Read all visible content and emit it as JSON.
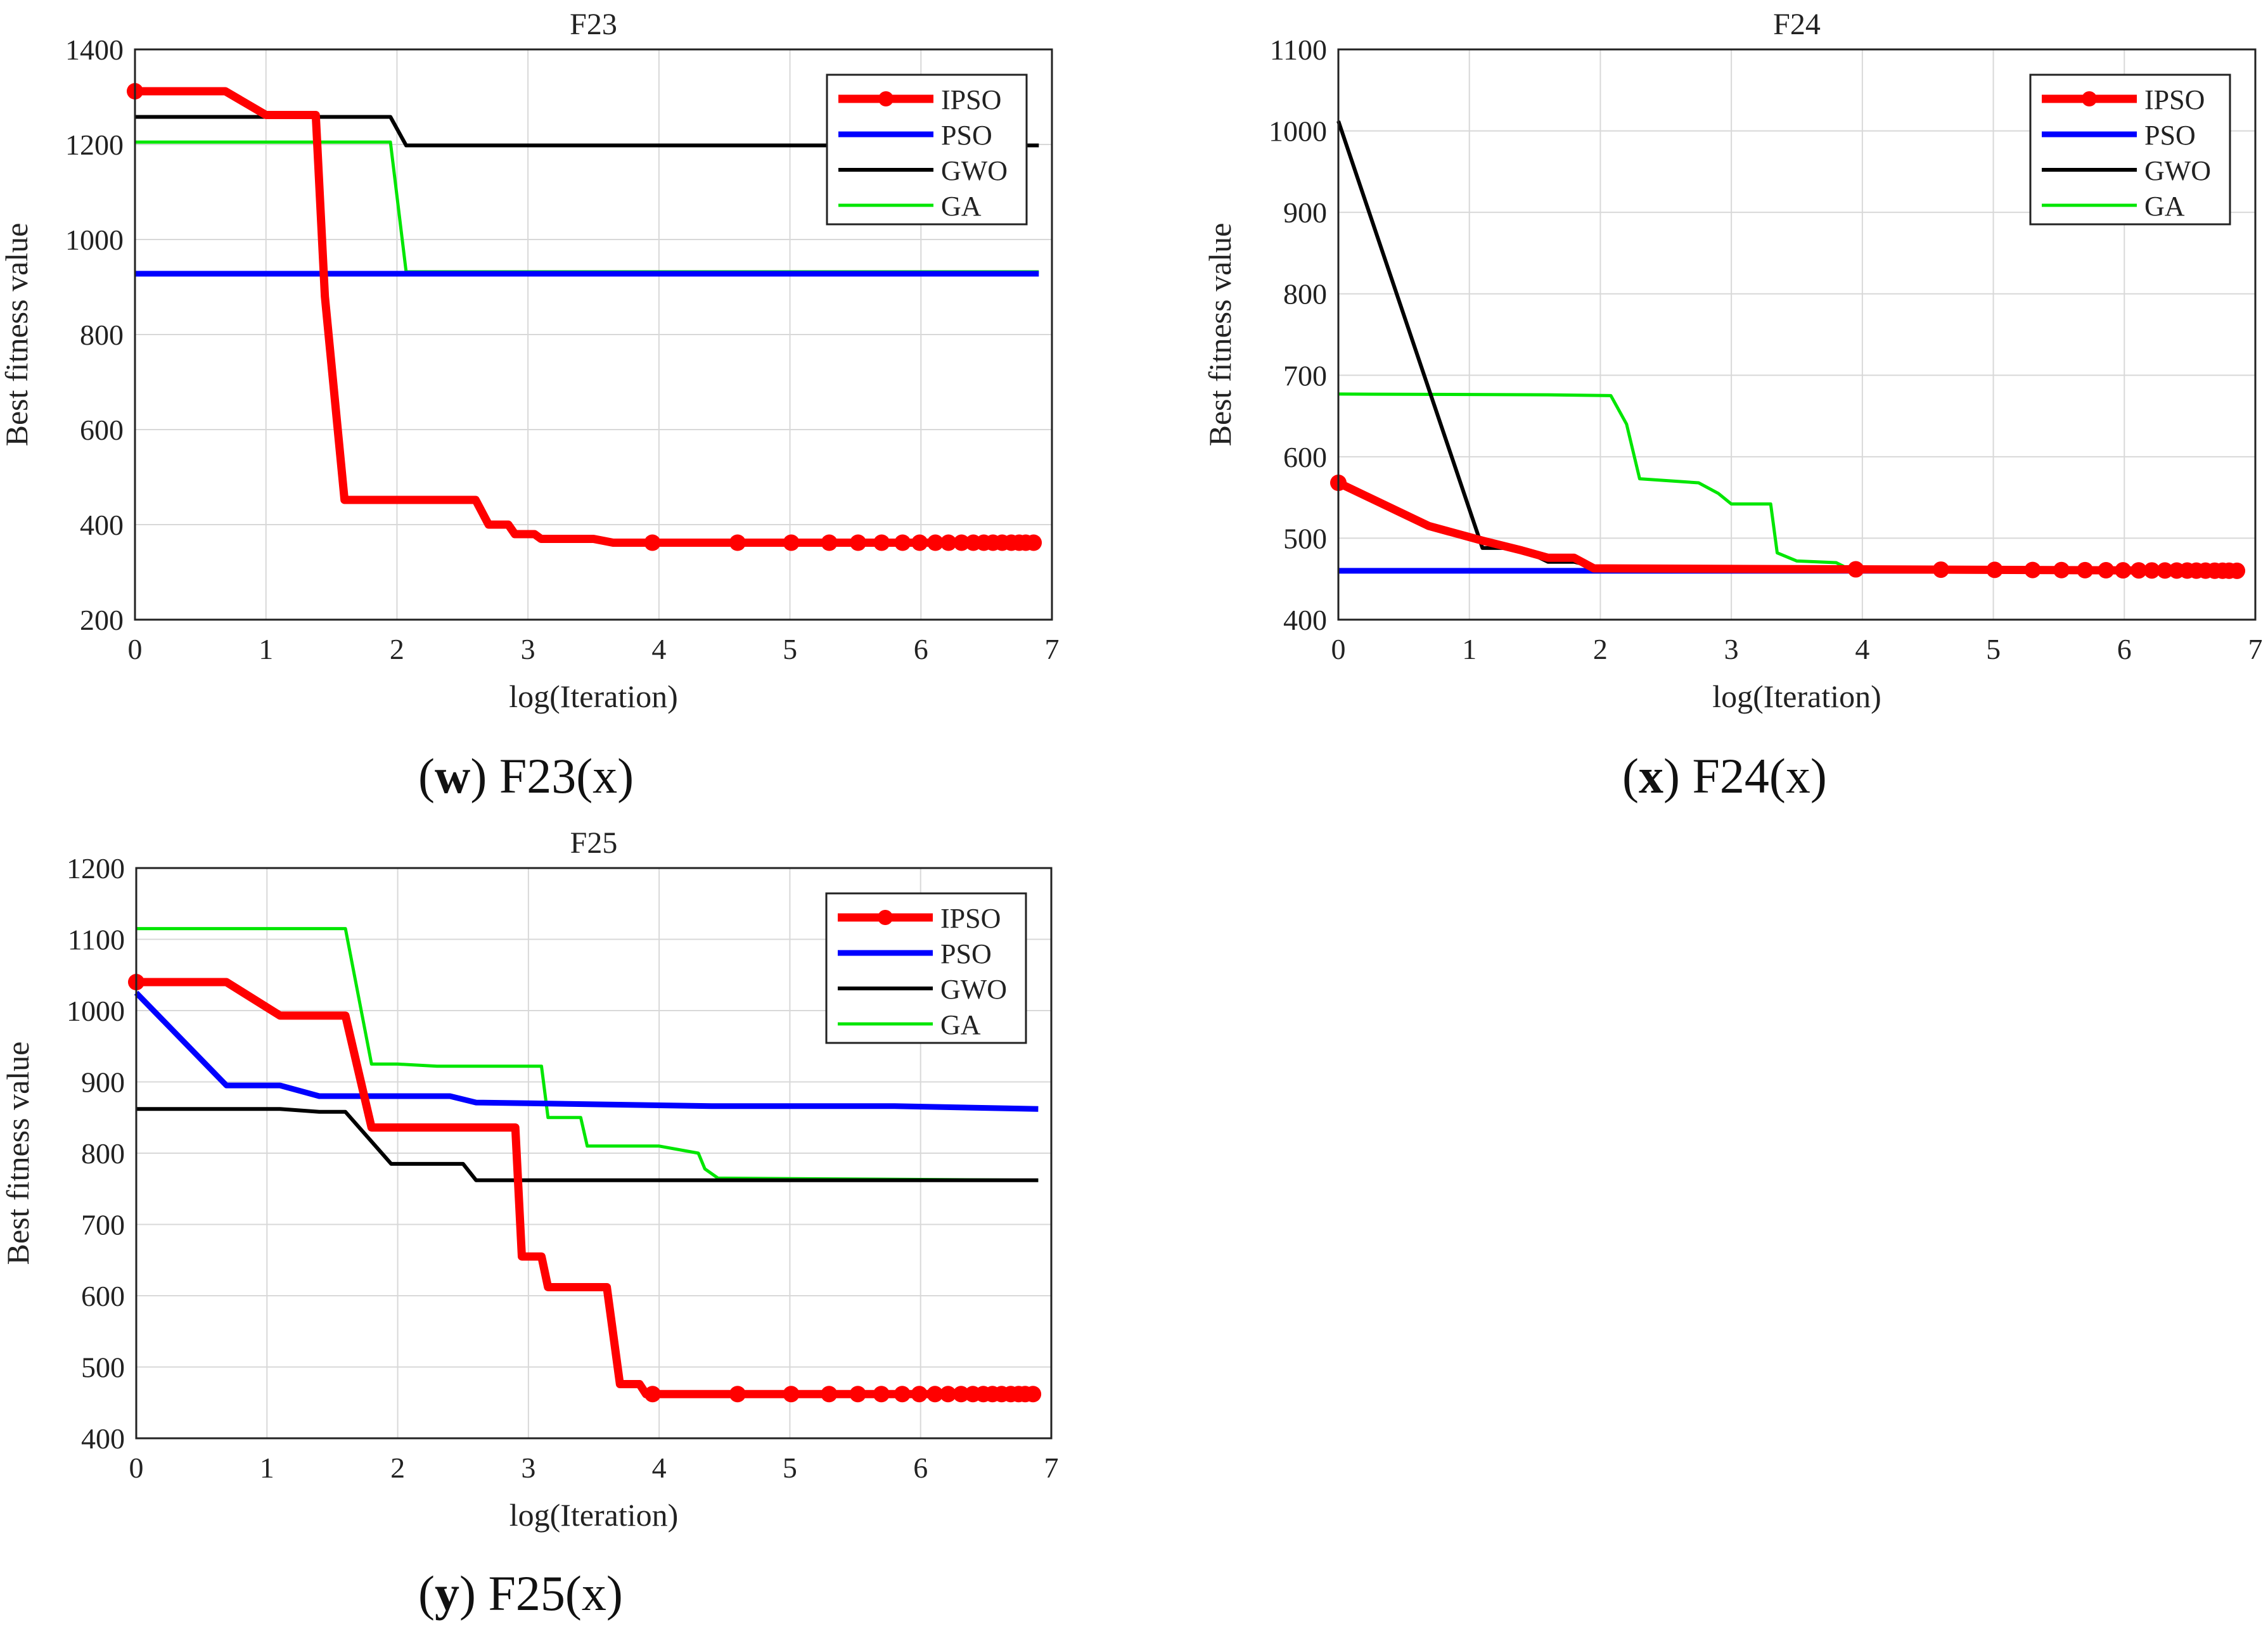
{
  "figure": {
    "captions": [
      {
        "letter": "w",
        "text": "F23(x)"
      },
      {
        "letter": "x",
        "text": "F24(x)"
      },
      {
        "letter": "y",
        "text": "F25(x)"
      }
    ]
  },
  "colors": {
    "IPSO": "#ff0000",
    "PSO": "#0000ff",
    "GWO": "#000000",
    "GA": "#00e600"
  },
  "chart_data": [
    {
      "type": "line",
      "title": "F23",
      "xlabel": "log(Iteration)",
      "ylabel": "Best fitness value",
      "xlim": [
        0,
        7
      ],
      "ylim": [
        200,
        1400
      ],
      "xticks": [
        0,
        1,
        2,
        3,
        4,
        5,
        6,
        7
      ],
      "yticks": [
        200,
        400,
        600,
        800,
        1000,
        1200,
        1400
      ],
      "grid": true,
      "legend_position": "top-right",
      "series": [
        {
          "name": "IPSO",
          "markers": true,
          "points": [
            [
              0,
              1312
            ],
            [
              0.69,
              1312
            ],
            [
              1.0,
              1262
            ],
            [
              1.38,
              1262
            ],
            [
              1.45,
              880
            ],
            [
              1.6,
              452
            ],
            [
              2.0,
              452
            ],
            [
              2.6,
              452
            ],
            [
              2.7,
              400
            ],
            [
              2.85,
              400
            ],
            [
              2.9,
              380
            ],
            [
              3.05,
              380
            ],
            [
              3.1,
              370
            ],
            [
              3.5,
              370
            ],
            [
              3.65,
              362
            ],
            [
              6.9,
              362
            ]
          ]
        },
        {
          "name": "PSO",
          "markers": false,
          "points": [
            [
              0,
              928
            ],
            [
              6.9,
              928
            ]
          ]
        },
        {
          "name": "GWO",
          "markers": false,
          "points": [
            [
              0,
              1258
            ],
            [
              1.95,
              1258
            ],
            [
              2.07,
              1198
            ],
            [
              6.9,
              1198
            ]
          ]
        },
        {
          "name": "GA",
          "markers": false,
          "points": [
            [
              0,
              1205
            ],
            [
              1.95,
              1205
            ],
            [
              2.07,
              932
            ],
            [
              6.9,
              932
            ]
          ]
        }
      ]
    },
    {
      "type": "line",
      "title": "F24",
      "xlabel": "log(Iteration)",
      "ylabel": "Best fitness value",
      "xlim": [
        0,
        7
      ],
      "ylim": [
        400,
        1100
      ],
      "xticks": [
        0,
        1,
        2,
        3,
        4,
        5,
        6,
        7
      ],
      "yticks": [
        400,
        500,
        600,
        700,
        800,
        900,
        1000,
        1100
      ],
      "grid": true,
      "legend_position": "top-right",
      "series": [
        {
          "name": "IPSO",
          "markers": true,
          "points": [
            [
              0,
              568
            ],
            [
              0.69,
              515
            ],
            [
              1.1,
              497
            ],
            [
              1.4,
              485
            ],
            [
              1.6,
              476
            ],
            [
              1.8,
              476
            ],
            [
              1.95,
              463
            ],
            [
              6.9,
              460
            ]
          ]
        },
        {
          "name": "PSO",
          "markers": false,
          "points": [
            [
              0,
              460
            ],
            [
              6.9,
              460
            ]
          ]
        },
        {
          "name": "GWO",
          "markers": false,
          "points": [
            [
              0,
              1012
            ],
            [
              1.1,
              488
            ],
            [
              1.38,
              488
            ],
            [
              1.6,
              471
            ],
            [
              1.8,
              471
            ],
            [
              1.9,
              467
            ],
            [
              2.05,
              460
            ],
            [
              6.9,
              460
            ]
          ]
        },
        {
          "name": "GA",
          "markers": false,
          "points": [
            [
              0,
              677
            ],
            [
              1.6,
              676
            ],
            [
              2.08,
              675
            ],
            [
              2.2,
              640
            ],
            [
              2.3,
              573
            ],
            [
              2.75,
              568
            ],
            [
              2.9,
              555
            ],
            [
              3.0,
              542
            ],
            [
              3.3,
              542
            ],
            [
              3.35,
              482
            ],
            [
              3.5,
              472
            ],
            [
              3.8,
              470
            ],
            [
              3.9,
              462
            ],
            [
              6.9,
              462
            ]
          ]
        }
      ]
    },
    {
      "type": "line",
      "title": "F25",
      "xlabel": "log(Iteration)",
      "ylabel": "Best fitness value",
      "xlim": [
        0,
        7
      ],
      "ylim": [
        400,
        1200
      ],
      "xticks": [
        0,
        1,
        2,
        3,
        4,
        5,
        6,
        7
      ],
      "yticks": [
        400,
        500,
        600,
        700,
        800,
        900,
        1000,
        1100,
        1200
      ],
      "grid": true,
      "legend_position": "top-right",
      "series": [
        {
          "name": "IPSO",
          "markers": true,
          "points": [
            [
              0,
              1040
            ],
            [
              0.69,
              1040
            ],
            [
              1.1,
              993
            ],
            [
              1.6,
              993
            ],
            [
              1.8,
              836
            ],
            [
              2.9,
              836
            ],
            [
              2.95,
              655
            ],
            [
              3.1,
              655
            ],
            [
              3.15,
              612
            ],
            [
              3.6,
              612
            ],
            [
              3.7,
              476
            ],
            [
              3.85,
              476
            ],
            [
              3.9,
              462
            ],
            [
              6.9,
              462
            ]
          ]
        },
        {
          "name": "PSO",
          "markers": false,
          "points": [
            [
              0,
              1025
            ],
            [
              0.69,
              895
            ],
            [
              1.1,
              895
            ],
            [
              1.4,
              880
            ],
            [
              2.4,
              880
            ],
            [
              2.6,
              871
            ],
            [
              3.0,
              870
            ],
            [
              4.4,
              866
            ],
            [
              5.8,
              866
            ],
            [
              6.9,
              862
            ]
          ]
        },
        {
          "name": "GWO",
          "markers": false,
          "points": [
            [
              0,
              862
            ],
            [
              1.1,
              862
            ],
            [
              1.4,
              858
            ],
            [
              1.6,
              858
            ],
            [
              1.95,
              785
            ],
            [
              2.5,
              785
            ],
            [
              2.6,
              762
            ],
            [
              6.9,
              762
            ]
          ]
        },
        {
          "name": "GA",
          "markers": false,
          "points": [
            [
              0,
              1115
            ],
            [
              1.6,
              1115
            ],
            [
              1.8,
              925
            ],
            [
              2.0,
              925
            ],
            [
              2.3,
              922
            ],
            [
              3.1,
              922
            ],
            [
              3.15,
              850
            ],
            [
              3.4,
              850
            ],
            [
              3.45,
              810
            ],
            [
              4.0,
              810
            ],
            [
              4.3,
              800
            ],
            [
              4.35,
              778
            ],
            [
              4.45,
              765
            ],
            [
              6.9,
              762
            ]
          ]
        }
      ]
    }
  ]
}
